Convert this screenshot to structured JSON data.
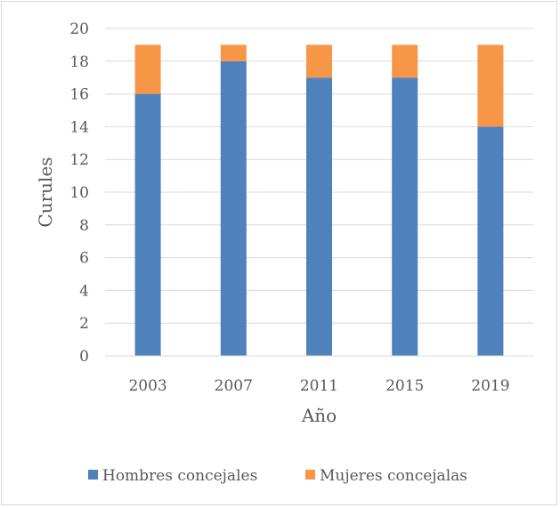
{
  "chart_data": {
    "type": "bar",
    "stacked": true,
    "title": "",
    "xlabel": "Año",
    "ylabel": "Curules",
    "categories": [
      "2003",
      "2007",
      "2011",
      "2015",
      "2019"
    ],
    "series": [
      {
        "name": "Hombres concejales",
        "color": "#4f81bd",
        "values": [
          16,
          18,
          17,
          17,
          14
        ]
      },
      {
        "name": "Mujeres concejalas",
        "color": "#f79646",
        "values": [
          3,
          1,
          2,
          2,
          5
        ]
      }
    ],
    "ylim": [
      0,
      20
    ],
    "yticks": [
      0,
      2,
      4,
      6,
      8,
      10,
      12,
      14,
      16,
      18,
      20
    ],
    "grid": true,
    "legend_position": "bottom"
  }
}
